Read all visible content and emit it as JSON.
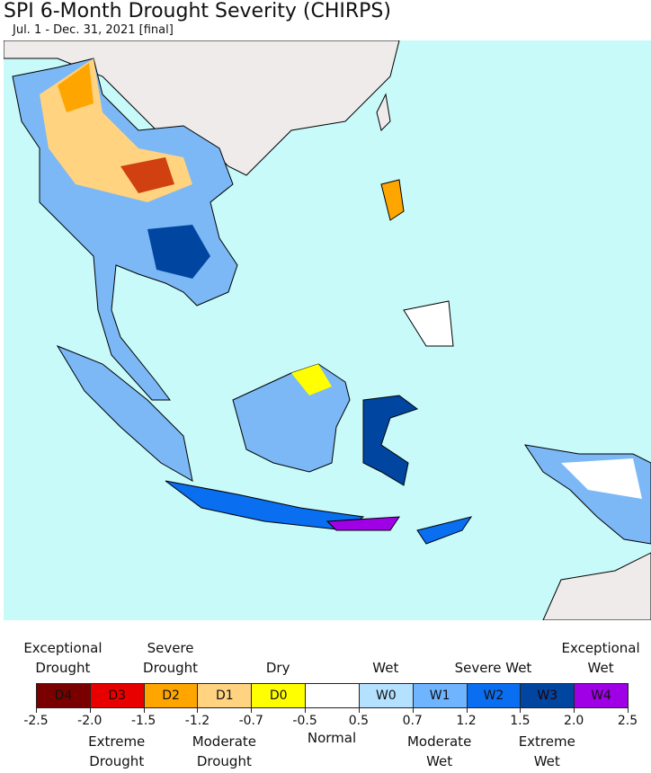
{
  "header": {
    "title": "SPI 6-Month Drought Severity (CHIRPS)",
    "subtitle": "Jul. 1 - Dec. 31, 2021 [final]"
  },
  "legend": {
    "classes": [
      {
        "code": "D4",
        "color": "#7a0000",
        "label": "Exceptional Drought"
      },
      {
        "code": "D3",
        "color": "#e80000",
        "label": "Extreme Drought"
      },
      {
        "code": "D2",
        "color": "#ffa500",
        "label": "Severe Drought"
      },
      {
        "code": "D1",
        "color": "#ffd37f",
        "label": "Moderate Drought"
      },
      {
        "code": "D0",
        "color": "#ffff00",
        "label": "Dry"
      },
      {
        "code": null,
        "color": "#ffffff",
        "label": "Normal"
      },
      {
        "code": "W0",
        "color": "#b4e1ff",
        "label": "Wet"
      },
      {
        "code": "W1",
        "color": "#6eb4ff",
        "label": "Moderate Wet"
      },
      {
        "code": "W2",
        "color": "#0a6ef0",
        "label": "Severe Wet"
      },
      {
        "code": "W3",
        "color": "#0046a0",
        "label": "Extreme Wet"
      },
      {
        "code": "W4",
        "color": "#a000e6",
        "label": "Exceptional Wet"
      }
    ],
    "ticks": [
      -2.5,
      {
        "value": -2,
        "label": "-2.0"
      },
      -1.5,
      -1.2,
      -0.7,
      -0.5,
      0.5,
      0.7,
      1.2,
      1.5,
      {
        "value": 2,
        "label": "2.0"
      },
      2.5
    ]
  }
}
